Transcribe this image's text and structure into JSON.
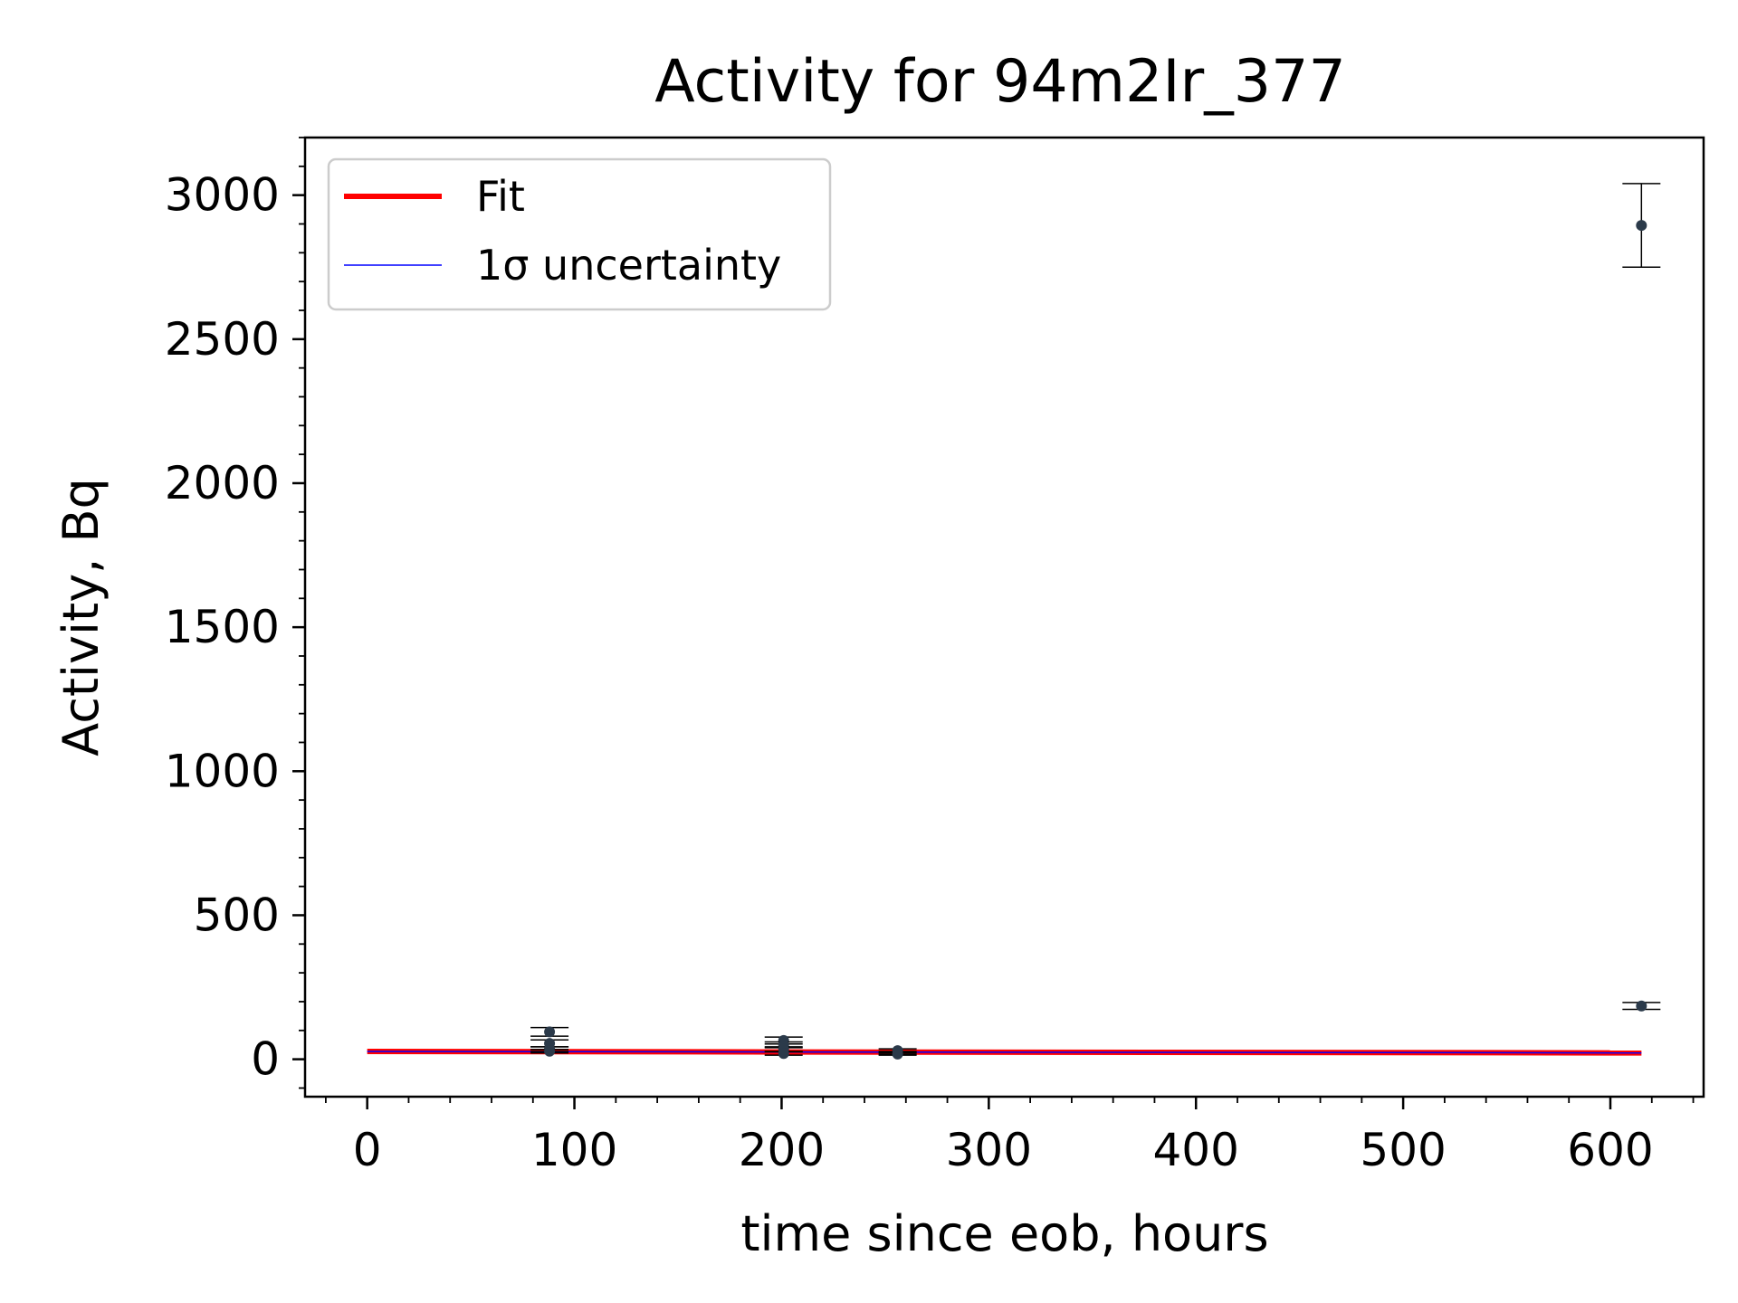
{
  "chart_data": {
    "type": "scatter",
    "title": "Activity for 94m2Ir_377",
    "xlabel": "time since eob, hours",
    "ylabel": "Activity, Bq",
    "xlim": [
      -30,
      645
    ],
    "ylim": [
      -130,
      3200
    ],
    "xticks": [
      0,
      100,
      200,
      300,
      400,
      500,
      600
    ],
    "yticks": [
      0,
      500,
      1000,
      1500,
      2000,
      2500,
      3000
    ],
    "xticks_labels": [
      "0",
      "100",
      "200",
      "300",
      "400",
      "500",
      "600"
    ],
    "yticks_labels": [
      "0",
      "500",
      "1000",
      "1500",
      "2000",
      "2500",
      "3000"
    ],
    "minor_ticks": true,
    "grid": false,
    "legend": {
      "position": "upper-left",
      "entries": [
        {
          "label": "Fit",
          "color": "#ff0000"
        },
        {
          "label": "1σ uncertainty",
          "color": "#0000ff"
        }
      ]
    },
    "colors": {
      "fit": "#ff0000",
      "uncertainty": "#0000ff",
      "points": "#2b3a4a"
    },
    "series": [
      {
        "name": "Fit",
        "type": "line",
        "x": [
          0,
          615
        ],
        "y": [
          27,
          22
        ]
      },
      {
        "name": "1σ uncertainty",
        "type": "line",
        "x": [
          0,
          615
        ],
        "y": [
          27,
          22
        ]
      }
    ],
    "measurements": [
      {
        "x": 88,
        "y": 95,
        "err": 15
      },
      {
        "x": 88,
        "y": 55,
        "err": 12
      },
      {
        "x": 88,
        "y": 35,
        "err": 8
      },
      {
        "x": 88,
        "y": 28,
        "err": 6
      },
      {
        "x": 201,
        "y": 65,
        "err": 12
      },
      {
        "x": 201,
        "y": 50,
        "err": 10
      },
      {
        "x": 201,
        "y": 35,
        "err": 8
      },
      {
        "x": 201,
        "y": 20,
        "err": 6
      },
      {
        "x": 256,
        "y": 30,
        "err": 6
      },
      {
        "x": 256,
        "y": 22,
        "err": 5
      },
      {
        "x": 256,
        "y": 18,
        "err": 4
      },
      {
        "x": 615,
        "y": 2895,
        "err": 145
      },
      {
        "x": 615,
        "y": 185,
        "err": 12
      }
    ]
  }
}
